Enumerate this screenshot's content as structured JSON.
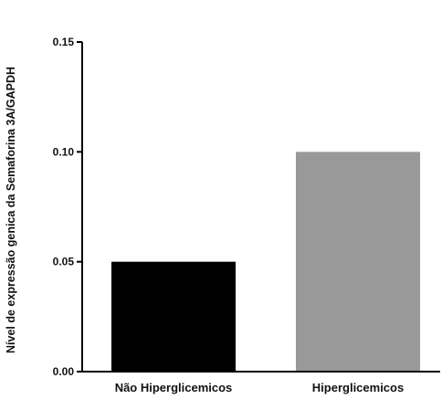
{
  "chart_data": {
    "type": "bar",
    "title": "",
    "xlabel": "",
    "ylabel": "Nível de expressão genica da Semaforina 3A/GAPDH",
    "ylim": [
      0,
      0.15
    ],
    "yticks": [
      "0.00",
      "0.05",
      "0.10",
      "0.15"
    ],
    "categories": [
      "Não Hiperglicemicos",
      "Hiperglicemicos"
    ],
    "values": [
      0.05,
      0.1
    ],
    "colors": [
      "#000000",
      "#999999"
    ],
    "grid": false,
    "legend": "none"
  }
}
